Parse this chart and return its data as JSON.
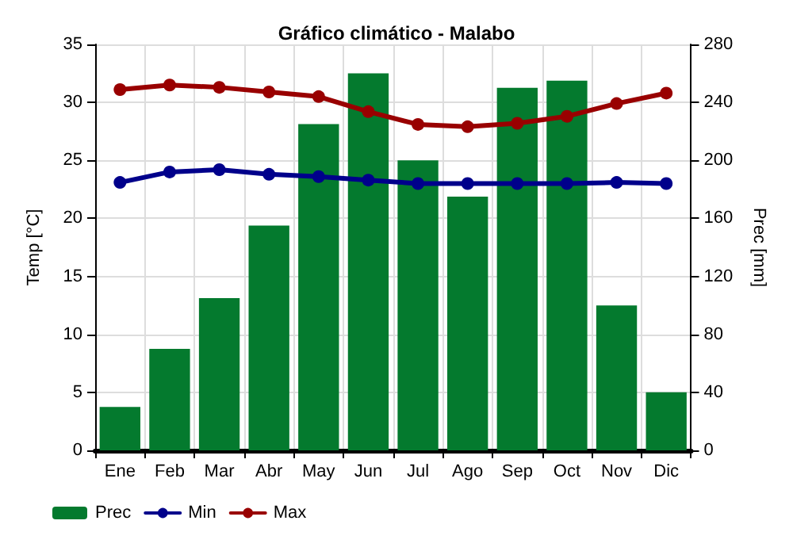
{
  "chart_data": {
    "type": "bar",
    "title": "Gráfico climático - Malabo",
    "ylabel": "Temp [°C]",
    "y2label": "Prec [mm]",
    "categories": [
      "Ene",
      "Feb",
      "Mar",
      "Abr",
      "May",
      "Jun",
      "Jul",
      "Ago",
      "Sep",
      "Oct",
      "Nov",
      "Dic"
    ],
    "series": [
      {
        "name": "Prec",
        "axis": "y2",
        "color": "#047a2e",
        "values": [
          30,
          70,
          105,
          155,
          225,
          260,
          200,
          175,
          250,
          255,
          100,
          40
        ]
      },
      {
        "name": "Min",
        "type": "line",
        "color": "#00008b",
        "values": [
          23.1,
          24.0,
          24.2,
          23.8,
          23.6,
          23.3,
          23.0,
          23.0,
          23.0,
          23.0,
          23.1,
          23.0
        ]
      },
      {
        "name": "Max",
        "type": "line",
        "color": "#990000",
        "values": [
          31.1,
          31.5,
          31.3,
          30.9,
          30.5,
          29.2,
          28.1,
          27.9,
          28.2,
          28.8,
          29.9,
          30.8
        ]
      }
    ],
    "ylim": [
      0,
      35
    ],
    "yticks": [
      0,
      5,
      10,
      15,
      20,
      25,
      30,
      35
    ],
    "y2lim": [
      0,
      280
    ],
    "y2ticks": [
      0,
      40,
      80,
      120,
      160,
      200,
      240,
      280
    ],
    "grid": true,
    "legend": "bottom left",
    "marker": "circle",
    "line_style": "solid"
  }
}
